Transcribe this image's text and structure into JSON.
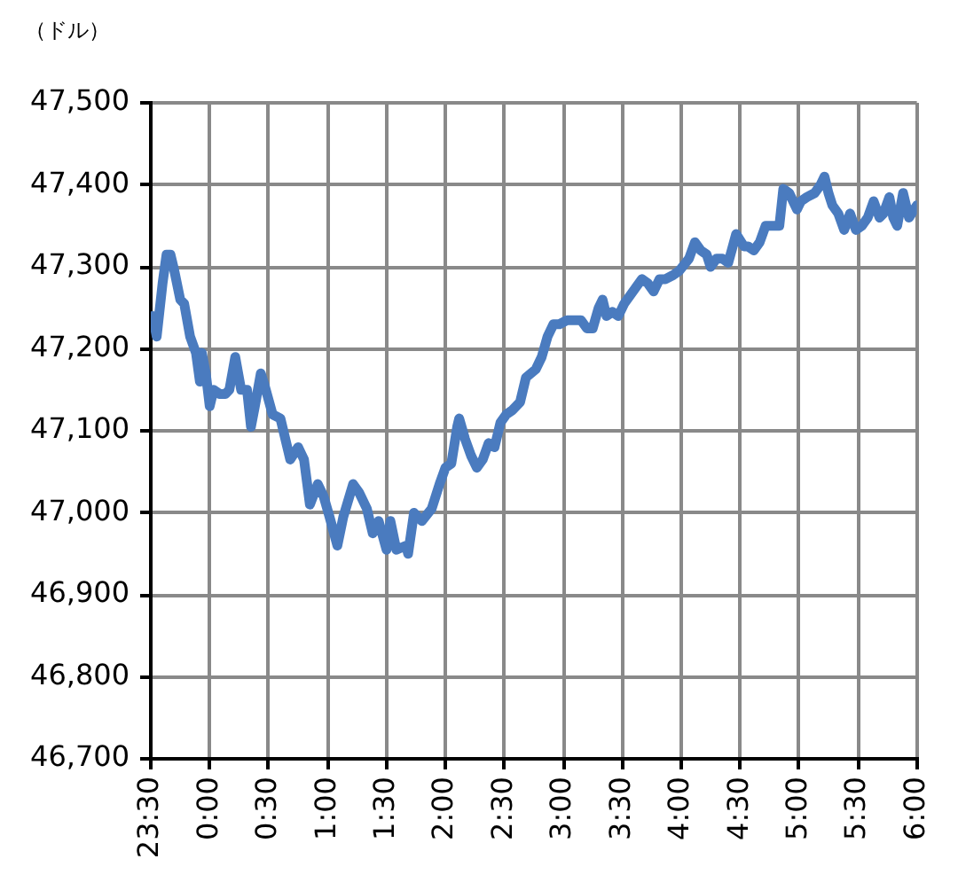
{
  "chart_data": {
    "type": "line",
    "ylabel": "（ドル）",
    "x": [
      "2000-01-01T23:31",
      "2000-01-01T23:33",
      "2000-01-01T23:36",
      "2000-01-01T23:38",
      "2000-01-01T23:40",
      "2000-01-01T23:42",
      "2000-01-01T23:45",
      "2000-01-01T23:47",
      "2000-01-01T23:50",
      "2000-01-01T23:53",
      "2000-01-01T23:55",
      "2000-01-01T23:56",
      "2000-01-01T23:58",
      "2000-01-02T00:00",
      "2000-01-02T00:02",
      "2000-01-02T00:05",
      "2000-01-02T00:08",
      "2000-01-02T00:10",
      "2000-01-02T00:13",
      "2000-01-02T00:16",
      "2000-01-02T00:19",
      "2000-01-02T00:21",
      "2000-01-02T00:23",
      "2000-01-02T00:26",
      "2000-01-02T00:28",
      "2000-01-02T00:32",
      "2000-01-02T00:36",
      "2000-01-02T00:41",
      "2000-01-02T00:45",
      "2000-01-02T00:48",
      "2000-01-02T00:51",
      "2000-01-02T00:55",
      "2000-01-02T00:58",
      "2000-01-02T01:01",
      "2000-01-02T01:05",
      "2000-01-02T01:08",
      "2000-01-02T01:13",
      "2000-01-02T01:16",
      "2000-01-02T01:20",
      "2000-01-02T01:23",
      "2000-01-02T01:26",
      "2000-01-02T01:30",
      "2000-01-02T01:32",
      "2000-01-02T01:35",
      "2000-01-02T01:40",
      "2000-01-02T01:41",
      "2000-01-02T01:44",
      "2000-01-02T01:48",
      "2000-01-02T01:53",
      "2000-01-02T01:57",
      "2000-01-02T02:00",
      "2000-01-02T02:03",
      "2000-01-02T02:06",
      "2000-01-02T02:07",
      "2000-01-02T02:10",
      "2000-01-02T02:13",
      "2000-01-02T02:16",
      "2000-01-02T02:19",
      "2000-01-02T02:22",
      "2000-01-02T02:25",
      "2000-01-02T02:28",
      "2000-01-02T02:31",
      "2000-01-02T02:34",
      "2000-01-02T02:38",
      "2000-01-02T02:41",
      "2000-01-02T02:46",
      "2000-01-02T02:49",
      "2000-01-02T02:52",
      "2000-01-02T02:55",
      "2000-01-02T02:58",
      "2000-01-02T03:02",
      "2000-01-02T03:06",
      "2000-01-02T03:09",
      "2000-01-02T03:12",
      "2000-01-02T03:15",
      "2000-01-02T03:18",
      "2000-01-02T03:20",
      "2000-01-02T03:22",
      "2000-01-02T03:25",
      "2000-01-02T03:28",
      "2000-01-02T03:31",
      "2000-01-02T03:34",
      "2000-01-02T03:37",
      "2000-01-02T03:40",
      "2000-01-02T03:43",
      "2000-01-02T03:46",
      "2000-01-02T03:49",
      "2000-01-02T03:52",
      "2000-01-02T03:56",
      "2000-01-02T03:59",
      "2000-01-02T04:04",
      "2000-01-02T04:07",
      "2000-01-02T04:10",
      "2000-01-02T04:13",
      "2000-01-02T04:15",
      "2000-01-02T04:18",
      "2000-01-02T04:21",
      "2000-01-02T04:24",
      "2000-01-02T04:28",
      "2000-01-02T04:32",
      "2000-01-02T04:34",
      "2000-01-02T04:37",
      "2000-01-02T04:40",
      "2000-01-02T04:43",
      "2000-01-02T04:47",
      "2000-01-02T04:50",
      "2000-01-02T04:52",
      "2000-01-02T04:55",
      "2000-01-02T04:59",
      "2000-01-02T05:01",
      "2000-01-02T05:04",
      "2000-01-02T05:08",
      "2000-01-02T05:11",
      "2000-01-02T05:13",
      "2000-01-02T05:15",
      "2000-01-02T05:17",
      "2000-01-02T05:20",
      "2000-01-02T05:23",
      "2000-01-02T05:26",
      "2000-01-02T05:29",
      "2000-01-02T05:32",
      "2000-01-02T05:35",
      "2000-01-02T05:38",
      "2000-01-02T05:41",
      "2000-01-02T05:43",
      "2000-01-02T05:46",
      "2000-01-02T05:48",
      "2000-01-02T05:50",
      "2000-01-02T05:53",
      "2000-01-02T05:56",
      "2000-01-02T06:00"
    ],
    "series": [
      {
        "color": "#4a7bbf",
        "values": [
          47240,
          47215,
          47280,
          47315,
          47315,
          47295,
          47260,
          47255,
          47215,
          47195,
          47160,
          47195,
          47170,
          47130,
          47150,
          47145,
          47145,
          47150,
          47190,
          47150,
          47150,
          47105,
          47130,
          47170,
          47155,
          47120,
          47115,
          47065,
          47080,
          47065,
          47010,
          47035,
          47020,
          46995,
          46960,
          46995,
          47035,
          47025,
          47005,
          46975,
          46990,
          46955,
          46990,
          46955,
          46960,
          46950,
          47000,
          46990,
          47005,
          47035,
          47055,
          47060,
          47105,
          47115,
          47090,
          47070,
          47055,
          47065,
          47085,
          47080,
          47110,
          47120,
          47125,
          47135,
          47165,
          47175,
          47190,
          47215,
          47230,
          47230,
          47235,
          47235,
          47235,
          47225,
          47225,
          47250,
          47260,
          47240,
          47245,
          47240,
          47255,
          47265,
          47275,
          47285,
          47280,
          47270,
          47285,
          47285,
          47290,
          47295,
          47310,
          47330,
          47320,
          47315,
          47300,
          47310,
          47310,
          47305,
          47340,
          47325,
          47325,
          47320,
          47330,
          47350,
          47350,
          47350,
          47395,
          47390,
          47370,
          47380,
          47385,
          47390,
          47400,
          47410,
          47390,
          47375,
          47365,
          47345,
          47365,
          47345,
          47350,
          47360,
          47380,
          47360,
          47365,
          47385,
          47360,
          47350,
          47390,
          47360,
          47375
        ]
      }
    ],
    "xlim": [
      "2000-01-01T23:30",
      "2000-01-02T06:00"
    ],
    "xticks": [
      {
        "value": "2000-01-01T23:30",
        "label": "23:30"
      },
      {
        "value": "2000-01-02T00:00",
        "label": "0:00"
      },
      {
        "value": "2000-01-02T00:30",
        "label": "0:30"
      },
      {
        "value": "2000-01-02T01:00",
        "label": "1:00"
      },
      {
        "value": "2000-01-02T01:30",
        "label": "1:30"
      },
      {
        "value": "2000-01-02T02:00",
        "label": "2:00"
      },
      {
        "value": "2000-01-02T02:30",
        "label": "2:30"
      },
      {
        "value": "2000-01-02T03:00",
        "label": "3:00"
      },
      {
        "value": "2000-01-02T03:30",
        "label": "3:30"
      },
      {
        "value": "2000-01-02T04:00",
        "label": "4:00"
      },
      {
        "value": "2000-01-02T04:30",
        "label": "4:30"
      },
      {
        "value": "2000-01-02T05:00",
        "label": "5:00"
      },
      {
        "value": "2000-01-02T05:30",
        "label": "5:30"
      },
      {
        "value": "2000-01-02T06:00",
        "label": "6:00"
      }
    ],
    "ylim": [
      46700,
      47500
    ],
    "yticks": [
      {
        "value": 46700,
        "label": "46,700"
      },
      {
        "value": 46800,
        "label": "46,800"
      },
      {
        "value": 46900,
        "label": "46,900"
      },
      {
        "value": 47000,
        "label": "47,000"
      },
      {
        "value": 47100,
        "label": "47,100"
      },
      {
        "value": 47200,
        "label": "47,200"
      },
      {
        "value": 47300,
        "label": "47,300"
      },
      {
        "value": 47400,
        "label": "47,400"
      },
      {
        "value": 47500,
        "label": "47,500"
      }
    ],
    "grid": true,
    "marker": "none",
    "legend": false
  }
}
